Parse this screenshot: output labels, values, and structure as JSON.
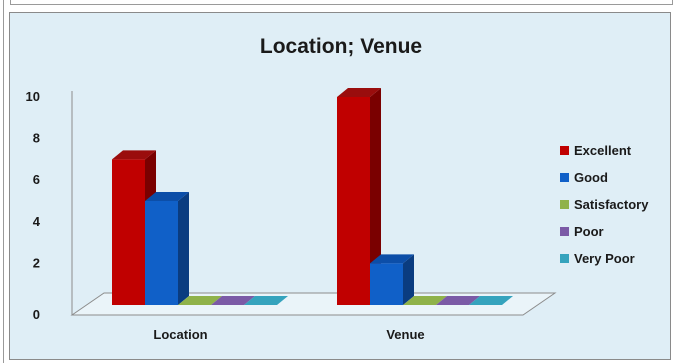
{
  "chart_data": {
    "type": "bar",
    "title": "Location; Venue",
    "categories": [
      "Location",
      "Venue"
    ],
    "series": [
      {
        "name": "Excellent",
        "values": [
          7,
          10
        ],
        "color": "#c00000",
        "side": "#7a0000",
        "top": "#9a0d0d"
      },
      {
        "name": "Good",
        "values": [
          5,
          2
        ],
        "color": "#1060c8",
        "side": "#0a3c80",
        "top": "#0c4ea8"
      },
      {
        "name": "Satisfactory",
        "values": [
          0,
          0
        ],
        "color": "#8fb24a",
        "side": "#5d7a2a",
        "top": "#76993a"
      },
      {
        "name": "Poor",
        "values": [
          0,
          0
        ],
        "color": "#7b5aa6",
        "side": "#4f3a70",
        "top": "#64498a"
      },
      {
        "name": "Very Poor",
        "values": [
          0,
          0
        ],
        "color": "#35a3bd",
        "side": "#1f6f82",
        "top": "#2a8aa0"
      }
    ],
    "yticks": [
      "0",
      "2",
      "4",
      "6",
      "8",
      "10"
    ],
    "ylim": [
      0,
      10
    ],
    "legend_position": "right",
    "grid": false,
    "background": "#dfeef6"
  }
}
